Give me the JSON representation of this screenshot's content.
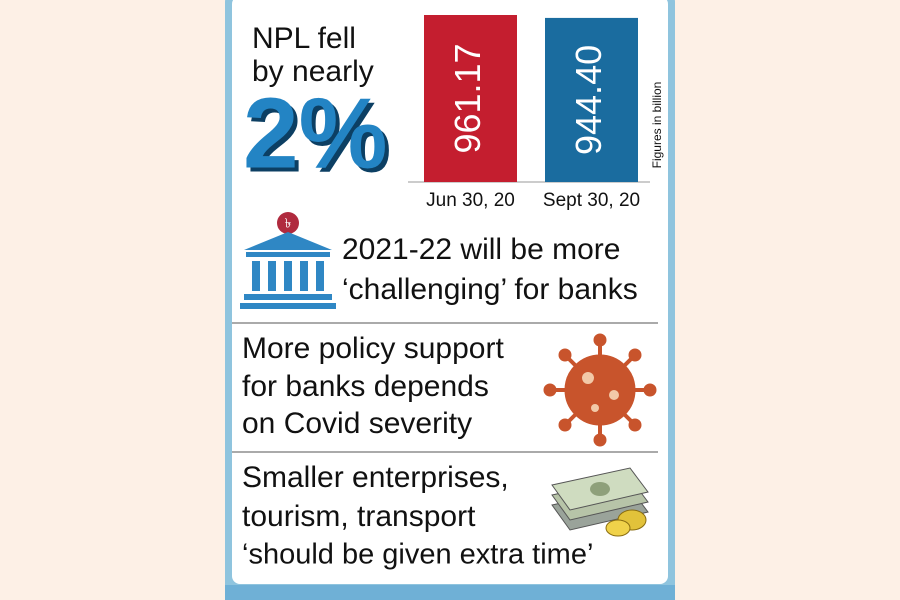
{
  "headline": {
    "lines": [
      "NPL fell",
      "by nearly"
    ],
    "big": "2%"
  },
  "chart_data": {
    "type": "bar",
    "categories": [
      "Jun 30, 20",
      "Sept 30, 20"
    ],
    "values": [
      961.17,
      944.4
    ],
    "value_labels": [
      "961.17",
      "944.40"
    ],
    "colors": [
      "#c41e2f",
      "#1a6c9f"
    ],
    "annotation": "Figures in billion"
  },
  "points": [
    {
      "lines": [
        "2021-22 will be more",
        "‘challenging’ for banks"
      ]
    },
    {
      "lines": [
        "More policy support",
        "for banks depends",
        "on Covid severity"
      ]
    },
    {
      "lines": [
        "Smaller enterprises,",
        "tourism, transport",
        "‘should be given extra time’"
      ]
    }
  ]
}
